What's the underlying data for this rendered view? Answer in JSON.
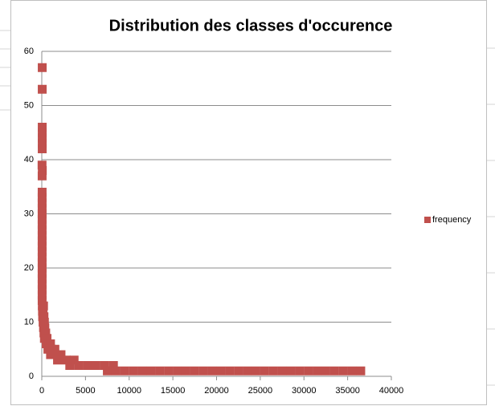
{
  "chart_data": {
    "type": "scatter",
    "title": "Distribution des classes d'occurence",
    "x": [
      50,
      50,
      50,
      50,
      50,
      50,
      50,
      30,
      60,
      40,
      40,
      40,
      40,
      40,
      40,
      40,
      40,
      40,
      40,
      40,
      40,
      40,
      40,
      40,
      40,
      40,
      40,
      40,
      40,
      40,
      40,
      60,
      200,
      80,
      150,
      100,
      250,
      150,
      300,
      200,
      350,
      250,
      450,
      300,
      600,
      500,
      800,
      1000,
      700,
      1100,
      1500,
      1000,
      1600,
      2200,
      1800,
      2800,
      3700,
      3200,
      4200,
      5200,
      6200,
      7200,
      8200,
      7500,
      8500,
      9500,
      10500,
      11500,
      12500,
      13500,
      14500,
      15500,
      16500,
      17500,
      18500,
      19500,
      20500,
      21500,
      22500,
      23500,
      24500,
      25500,
      26500,
      27500,
      28500,
      29500,
      30500,
      31500,
      32500,
      33500,
      34500,
      35500,
      36500
    ],
    "series": [
      {
        "name": "frequency",
        "color": "#c0504d",
        "values": [
          57,
          53,
          46,
          45,
          44,
          43,
          42,
          39,
          38,
          37,
          34,
          33,
          32,
          31,
          30,
          29,
          28,
          27,
          26,
          25,
          24,
          23,
          22,
          21,
          20,
          19,
          18,
          17,
          16,
          15,
          14,
          13,
          13,
          12,
          12,
          11,
          11,
          10,
          10,
          9,
          9,
          8,
          8,
          7,
          7,
          6,
          6,
          6,
          5,
          5,
          5,
          4,
          4,
          4,
          3,
          3,
          3,
          2,
          2,
          2,
          2,
          2,
          2,
          1,
          1,
          1,
          1,
          1,
          1,
          1,
          1,
          1,
          1,
          1,
          1,
          1,
          1,
          1,
          1,
          1,
          1,
          1,
          1,
          1,
          1,
          1,
          1,
          1,
          1,
          1,
          1,
          1,
          1
        ]
      }
    ],
    "xlim": [
      0,
      40000
    ],
    "xticks": [
      0,
      5000,
      10000,
      15000,
      20000,
      25000,
      30000,
      35000,
      40000
    ],
    "ylim": [
      0,
      60
    ],
    "yticks": [
      0,
      10,
      20,
      30,
      40,
      50,
      60
    ],
    "grid": true,
    "legend": "right"
  }
}
